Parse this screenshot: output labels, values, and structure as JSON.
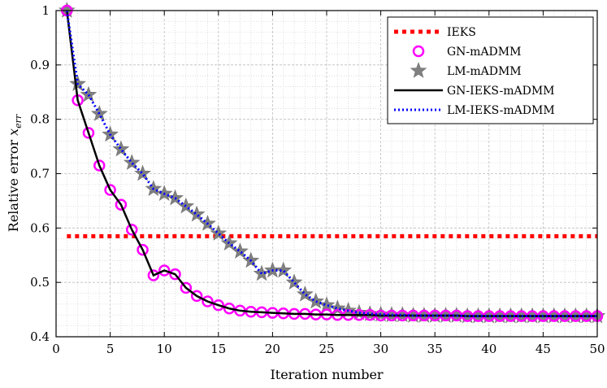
{
  "chart_data": {
    "type": "line",
    "title": "",
    "xlabel": "Iteration number",
    "ylabel": "Relative error",
    "ylabel_symbol": "x",
    "ylabel_subscript": "err",
    "xlim": [
      0,
      50
    ],
    "ylim": [
      0.4,
      1.0
    ],
    "xticks": [
      0,
      5,
      10,
      15,
      20,
      25,
      30,
      35,
      40,
      45,
      50
    ],
    "yticks": [
      0.4,
      0.5,
      0.6,
      0.7,
      0.8,
      0.9,
      1.0
    ],
    "grid": "minor-dotted",
    "legend_position": "top-right",
    "x": [
      1,
      2,
      3,
      4,
      5,
      6,
      7,
      8,
      9,
      10,
      11,
      12,
      13,
      14,
      15,
      16,
      17,
      18,
      19,
      20,
      21,
      22,
      23,
      24,
      25,
      26,
      27,
      28,
      29,
      30,
      31,
      32,
      33,
      34,
      35,
      36,
      37,
      38,
      39,
      40,
      41,
      42,
      43,
      44,
      45,
      46,
      47,
      48,
      49,
      50
    ],
    "series": [
      {
        "name": "IEKS",
        "color": "#ff0000",
        "style": "dotted-thick",
        "values": [
          0.585,
          0.585,
          0.585,
          0.585,
          0.585,
          0.585,
          0.585,
          0.585,
          0.585,
          0.585,
          0.585,
          0.585,
          0.585,
          0.585,
          0.585,
          0.585,
          0.585,
          0.585,
          0.585,
          0.585,
          0.585,
          0.585,
          0.585,
          0.585,
          0.585,
          0.585,
          0.585,
          0.585,
          0.585,
          0.585,
          0.585,
          0.585,
          0.585,
          0.585,
          0.585,
          0.585,
          0.585,
          0.585,
          0.585,
          0.585,
          0.585,
          0.585,
          0.585,
          0.585,
          0.585,
          0.585,
          0.585,
          0.585,
          0.585,
          0.585
        ]
      },
      {
        "name": "GN-mADMM",
        "color": "#ff00ff",
        "style": "circle-markers",
        "values": [
          1.0,
          0.835,
          0.775,
          0.715,
          0.67,
          0.643,
          0.597,
          0.56,
          0.513,
          0.522,
          0.515,
          0.49,
          0.475,
          0.465,
          0.458,
          0.452,
          0.448,
          0.446,
          0.445,
          0.444,
          0.443,
          0.442,
          0.442,
          0.441,
          0.441,
          0.44,
          0.44,
          0.44,
          0.44,
          0.439,
          0.439,
          0.439,
          0.439,
          0.439,
          0.439,
          0.439,
          0.439,
          0.438,
          0.438,
          0.438,
          0.438,
          0.438,
          0.438,
          0.438,
          0.438,
          0.438,
          0.438,
          0.438,
          0.438,
          0.438
        ]
      },
      {
        "name": "LM-mADMM",
        "color": "#808080",
        "style": "star-markers",
        "values": [
          1.0,
          0.865,
          0.845,
          0.81,
          0.772,
          0.745,
          0.72,
          0.7,
          0.672,
          0.663,
          0.655,
          0.64,
          0.625,
          0.608,
          0.59,
          0.572,
          0.557,
          0.54,
          0.516,
          0.522,
          0.522,
          0.5,
          0.478,
          0.465,
          0.458,
          0.452,
          0.448,
          0.444,
          0.442,
          0.441,
          0.44,
          0.44,
          0.439,
          0.439,
          0.439,
          0.439,
          0.439,
          0.438,
          0.438,
          0.438,
          0.438,
          0.438,
          0.438,
          0.438,
          0.438,
          0.438,
          0.438,
          0.438,
          0.438,
          0.438
        ]
      },
      {
        "name": "GN-IEKS-mADMM",
        "color": "#000000",
        "style": "solid",
        "values": [
          1.0,
          0.835,
          0.775,
          0.715,
          0.67,
          0.643,
          0.597,
          0.56,
          0.513,
          0.522,
          0.515,
          0.49,
          0.475,
          0.465,
          0.458,
          0.452,
          0.448,
          0.446,
          0.445,
          0.444,
          0.443,
          0.442,
          0.442,
          0.441,
          0.441,
          0.44,
          0.44,
          0.44,
          0.44,
          0.439,
          0.439,
          0.439,
          0.439,
          0.439,
          0.439,
          0.439,
          0.439,
          0.438,
          0.438,
          0.438,
          0.438,
          0.438,
          0.438,
          0.438,
          0.438,
          0.438,
          0.438,
          0.438,
          0.438,
          0.438
        ]
      },
      {
        "name": "LM-IEKS-mADMM",
        "color": "#0000ff",
        "style": "dotted",
        "values": [
          1.0,
          0.865,
          0.845,
          0.81,
          0.772,
          0.745,
          0.72,
          0.7,
          0.672,
          0.663,
          0.655,
          0.64,
          0.625,
          0.608,
          0.59,
          0.572,
          0.557,
          0.54,
          0.516,
          0.522,
          0.522,
          0.5,
          0.478,
          0.465,
          0.458,
          0.452,
          0.448,
          0.444,
          0.442,
          0.441,
          0.44,
          0.44,
          0.439,
          0.439,
          0.439,
          0.439,
          0.439,
          0.438,
          0.438,
          0.438,
          0.438,
          0.438,
          0.438,
          0.438,
          0.438,
          0.438,
          0.438,
          0.438,
          0.438,
          0.438
        ]
      }
    ]
  }
}
